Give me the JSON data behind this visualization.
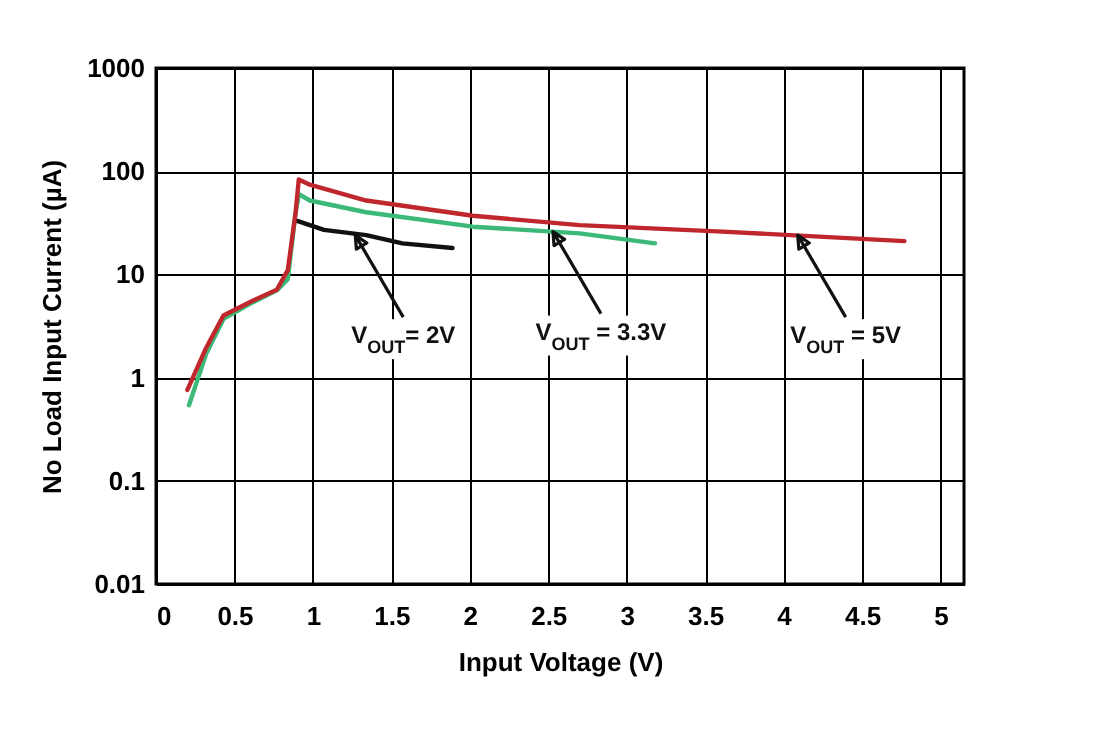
{
  "chart_data": {
    "type": "line",
    "xlabel": "Input Voltage (V)",
    "ylabel": "No Load Input Current (µA)",
    "xlim": [
      0,
      5.15
    ],
    "xticks": [
      0,
      0.5,
      1,
      1.5,
      2,
      2.5,
      3,
      3.5,
      4,
      4.5,
      5
    ],
    "ylim": [
      0.01,
      1000
    ],
    "yticks": [
      0.01,
      0.1,
      1,
      10,
      100,
      1000
    ],
    "log": "y",
    "grid": true,
    "line_style": "solid",
    "series": [
      {
        "color": "#3cb878",
        "x": [
          0.21,
          0.32,
          0.43,
          0.61,
          0.77,
          0.84,
          0.89,
          0.91,
          0.98,
          1.34,
          2.02,
          2.7,
          3.18
        ],
        "values": [
          0.54,
          1.7,
          3.7,
          5.3,
          7,
          9,
          40,
          60,
          52,
          40,
          29,
          25,
          20
        ]
      },
      {
        "color": "#111111",
        "x": [
          0.9,
          1.07,
          1.34,
          1.57,
          1.89
        ],
        "values": [
          33,
          27,
          24,
          20,
          18
        ]
      },
      {
        "color": "#c0272d",
        "x": [
          0.2,
          0.32,
          0.43,
          0.61,
          0.77,
          0.84,
          0.89,
          0.91,
          0.98,
          1.34,
          2.02,
          2.7,
          3.61,
          4.77
        ],
        "values": [
          0.76,
          1.95,
          4,
          5.5,
          7.1,
          11,
          40,
          83,
          74,
          52,
          37,
          30,
          26,
          21
        ]
      }
    ],
    "annotations": [
      {
        "text": "V$_{OUT}$= 2V",
        "x": 1.27,
        "y": 24
      },
      {
        "text": "V$_{OUT}$ = 3.3V",
        "x": 2.53,
        "y": 26
      },
      {
        "text": "V$_{OUT}$ = 5V",
        "x": 4.09,
        "y": 24
      }
    ]
  }
}
